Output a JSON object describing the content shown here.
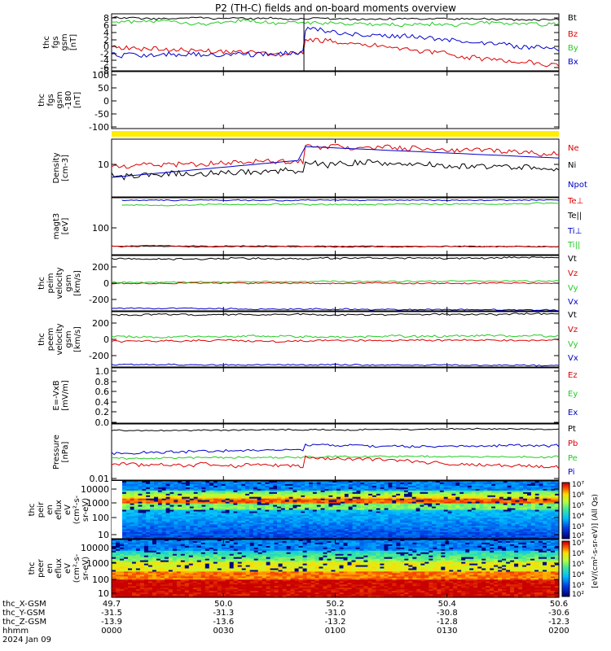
{
  "title": "P2 (TH-C) fields and on-board moments overview",
  "colors": {
    "black": "#000000",
    "red": "#dd0000",
    "green": "#22cc22",
    "blue": "#0000cc",
    "yellow": "#ffee00"
  },
  "panels": [
    {
      "id": "fgs",
      "ylabel": [
        "thc",
        "fgs",
        "gsm",
        "[nT]"
      ],
      "tick_labels": [
        "8",
        "6",
        "4",
        "2",
        "0",
        "-2",
        "-4",
        "-6",
        "-8"
      ],
      "legend": [
        {
          "label": "Bt",
          "color": "#000000"
        },
        {
          "label": "Bz",
          "color": "#dd0000"
        },
        {
          "label": "By",
          "color": "#22cc22"
        },
        {
          "label": "Bx",
          "color": "#0000cc"
        }
      ]
    },
    {
      "id": "fgs-filtered",
      "ylabel": [
        "thc",
        "fgs",
        "gsm",
        "-180",
        "[nT]"
      ],
      "tick_labels": [
        "100",
        "50",
        "0",
        "-50",
        "-100"
      ]
    },
    {
      "id": "density",
      "ylabel": [
        "Density",
        "[cm-3]"
      ],
      "tick_labels": [
        "10"
      ],
      "legend": [
        {
          "label": "Ne",
          "color": "#dd0000"
        },
        {
          "label": "Ni",
          "color": "#000000"
        },
        {
          "label": "Npot",
          "color": "#0000cc"
        }
      ]
    },
    {
      "id": "temperature",
      "ylabel": [
        "magt3",
        "[eV]"
      ],
      "tick_labels": [
        "100"
      ],
      "legend": [
        {
          "label": "Te⊥",
          "color": "#dd0000"
        },
        {
          "label": "Te||",
          "color": "#000000"
        },
        {
          "label": "Ti⊥",
          "color": "#0000cc"
        },
        {
          "label": "Ti||",
          "color": "#22cc22"
        }
      ]
    },
    {
      "id": "ion-velocity",
      "ylabel": [
        "thc",
        "peim",
        "velocity",
        "gsm",
        "[km/s]"
      ],
      "tick_labels": [
        "200",
        "0",
        "-200"
      ],
      "legend": [
        {
          "label": "Vt",
          "color": "#000000"
        },
        {
          "label": "Vz",
          "color": "#dd0000"
        },
        {
          "label": "Vy",
          "color": "#22cc22"
        },
        {
          "label": "Vx",
          "color": "#0000cc"
        }
      ]
    },
    {
      "id": "electron-velocity",
      "ylabel": [
        "thc",
        "peem",
        "velocity",
        "gsm",
        "[km/s]"
      ],
      "tick_labels": [
        "200",
        "0",
        "-200"
      ],
      "legend": [
        {
          "label": "Vt",
          "color": "#000000"
        },
        {
          "label": "Vz",
          "color": "#dd0000"
        },
        {
          "label": "Vy",
          "color": "#22cc22"
        },
        {
          "label": "Vx",
          "color": "#0000cc"
        }
      ]
    },
    {
      "id": "efield",
      "ylabel": [
        "E=-VxB",
        "[mV/m]"
      ],
      "tick_labels": [
        "1.0",
        "0.8",
        "0.6",
        "0.4",
        "0.2",
        "0.0"
      ],
      "legend": [
        {
          "label": "Ez",
          "color": "#dd0000"
        },
        {
          "label": "Ey",
          "color": "#22cc22"
        },
        {
          "label": "Ex",
          "color": "#0000cc"
        }
      ]
    },
    {
      "id": "pressure",
      "ylabel": [
        "Pressure",
        "[nPa]"
      ],
      "tick_labels": [
        "0.01"
      ],
      "legend": [
        {
          "label": "Pt",
          "color": "#000000"
        },
        {
          "label": "Pb",
          "color": "#dd0000"
        },
        {
          "label": "Pe",
          "color": "#22cc22"
        },
        {
          "label": "Pi",
          "color": "#0000cc"
        }
      ]
    },
    {
      "id": "ion-spectrogram",
      "ylabel": [
        "thc",
        "peir",
        "en",
        "eflux",
        "eV",
        "(cm²-s-",
        "sr-eV)"
      ],
      "tick_labels": [
        "10000",
        "1000",
        "100",
        "10"
      ]
    },
    {
      "id": "electron-spectrogram",
      "ylabel": [
        "thc",
        "peer",
        "en",
        "eflux",
        "eV",
        "(cm²-s-",
        "sr-eV)"
      ],
      "tick_labels": [
        "10000",
        "1000",
        "100",
        "10"
      ]
    }
  ],
  "colorbar": {
    "label": "[eV/(cm²-s-sr-eV)] (All Qs)",
    "tick_labels": [
      "10⁷",
      "10⁶",
      "10⁵",
      "10⁴",
      "10³",
      "10²",
      "10⁷",
      "10⁶",
      "10⁵",
      "10⁴",
      "10³",
      "10²"
    ]
  },
  "xaxis": {
    "rows": [
      {
        "label": "thc_X-GSM",
        "values": [
          "49.7",
          "50.0",
          "50.2",
          "50.4",
          "50.6"
        ]
      },
      {
        "label": "thc_Y-GSM",
        "values": [
          "-31.5",
          "-31.3",
          "-31.0",
          "-30.8",
          "-30.6"
        ]
      },
      {
        "label": "thc_Z-GSM",
        "values": [
          "-13.9",
          "-13.6",
          "-13.2",
          "-12.8",
          "-12.3"
        ]
      },
      {
        "label": "hhmm",
        "values": [
          "0000",
          "0030",
          "0100",
          "0130",
          "0200"
        ]
      }
    ],
    "date": "2024 Jan 09"
  },
  "chart_data": [
    {
      "type": "line",
      "title": "P2 (TH-C) fields and on-board moments overview",
      "ylabel": "thc fgs gsm [nT]",
      "x": [
        "0000",
        "0030",
        "0100",
        "0130",
        "0200"
      ],
      "ylim": [
        -8,
        8
      ],
      "series": [
        {
          "name": "Bt",
          "values": [
            6.5,
            7.0,
            6.8,
            7.2,
            7.3
          ]
        },
        {
          "name": "Bz",
          "values": [
            -1.0,
            1.5,
            -0.5,
            3.0,
            -5.0
          ]
        },
        {
          "name": "By",
          "values": [
            6.0,
            5.0,
            2.5,
            4.0,
            3.5
          ]
        },
        {
          "name": "Bx",
          "values": [
            -3.0,
            -4.0,
            5.0,
            2.0,
            1.5
          ]
        }
      ]
    },
    {
      "type": "line",
      "ylabel": "Density [cm-3]",
      "x": [
        "0000",
        "0030",
        "0100",
        "0130",
        "0200"
      ],
      "ylog": true,
      "series": [
        {
          "name": "Ne",
          "values": [
            6.0,
            12.0,
            14.0,
            16.0,
            14.0
          ]
        },
        {
          "name": "Ni",
          "values": [
            2.5,
            5.0,
            14.0,
            9.0,
            8.0
          ]
        },
        {
          "name": "Npot",
          "values": [
            4.0,
            7.0,
            18.0,
            14.0,
            12.0
          ]
        }
      ]
    },
    {
      "type": "line",
      "ylabel": "magt3 [eV]",
      "x": [
        "0000",
        "0030",
        "0100",
        "0130",
        "0200"
      ],
      "ylog": true,
      "series": [
        {
          "name": "Te⊥",
          "values": [
            20,
            20,
            20,
            20,
            20
          ]
        },
        {
          "name": "Te||",
          "values": [
            20,
            20,
            20,
            20,
            20
          ]
        },
        {
          "name": "Ti⊥",
          "values": [
            2000,
            2000,
            2000,
            2000,
            2000
          ]
        },
        {
          "name": "Ti||",
          "values": [
            1600,
            1600,
            1700,
            1700,
            1700
          ]
        }
      ]
    },
    {
      "type": "line",
      "ylabel": "thc peim velocity gsm [km/s]",
      "x": [
        "0000",
        "0030",
        "0100",
        "0130",
        "0200"
      ],
      "ylim": [
        -400,
        400
      ],
      "series": [
        {
          "name": "Vt",
          "values": [
            340,
            330,
            340,
            340,
            350
          ]
        },
        {
          "name": "Vz",
          "values": [
            -10,
            -10,
            -10,
            -10,
            -10
          ]
        },
        {
          "name": "Vy",
          "values": [
            0,
            0,
            10,
            20,
            20
          ]
        },
        {
          "name": "Vx",
          "values": [
            -300,
            -300,
            -320,
            -320,
            -330
          ]
        }
      ]
    },
    {
      "type": "line",
      "ylabel": "thc peem velocity gsm [km/s]",
      "x": [
        "0000",
        "0030",
        "0100",
        "0130",
        "0200"
      ],
      "ylim": [
        -400,
        400
      ],
      "series": [
        {
          "name": "Vt",
          "values": [
            330,
            330,
            340,
            340,
            340
          ]
        },
        {
          "name": "Vz",
          "values": [
            -30,
            -20,
            -10,
            -10,
            -10
          ]
        },
        {
          "name": "Vy",
          "values": [
            20,
            20,
            30,
            30,
            30
          ]
        },
        {
          "name": "Vx",
          "values": [
            -300,
            -300,
            -320,
            -320,
            -330
          ]
        }
      ]
    },
    {
      "type": "line",
      "ylabel": "Pressure [nPa]",
      "x": [
        "0000",
        "0030",
        "0100",
        "0130",
        "0200"
      ],
      "ylog": true,
      "series": [
        {
          "name": "Pt",
          "values": [
            0.3,
            0.3,
            0.3,
            0.32,
            0.32
          ]
        },
        {
          "name": "Pb",
          "values": [
            0.04,
            0.05,
            0.04,
            0.03,
            0.04
          ]
        },
        {
          "name": "Pe",
          "values": [
            0.05,
            0.06,
            0.08,
            0.07,
            0.06
          ]
        },
        {
          "name": "Pi",
          "values": [
            0.08,
            0.1,
            0.15,
            0.14,
            0.14
          ]
        }
      ]
    }
  ]
}
